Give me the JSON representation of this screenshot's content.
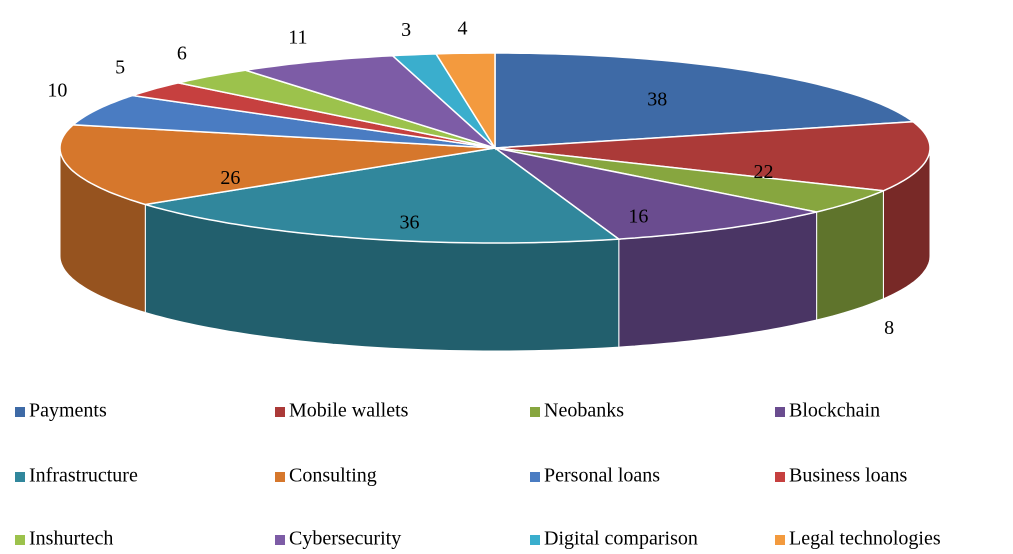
{
  "chart_data": {
    "type": "pie",
    "categories": [
      "Payments",
      "Mobile wallets",
      "Neobanks",
      "Blockchain",
      "Infrastructure",
      "Consulting",
      "Personal loans",
      "Business loans",
      "Inshurtech",
      "Cybersecurity",
      "Digital comparison",
      "Legal technologies"
    ],
    "values": [
      38,
      22,
      8,
      16,
      36,
      26,
      10,
      5,
      6,
      11,
      3,
      4
    ],
    "colors": [
      "#3e6aa6",
      "#ab3a38",
      "#87a63f",
      "#6a4c8f",
      "#31879c",
      "#d6772c",
      "#4a7cc2",
      "#c6403f",
      "#9cc24c",
      "#7d5ca6",
      "#3aaecd",
      "#f39a3e"
    ],
    "legend": "bottom"
  }
}
